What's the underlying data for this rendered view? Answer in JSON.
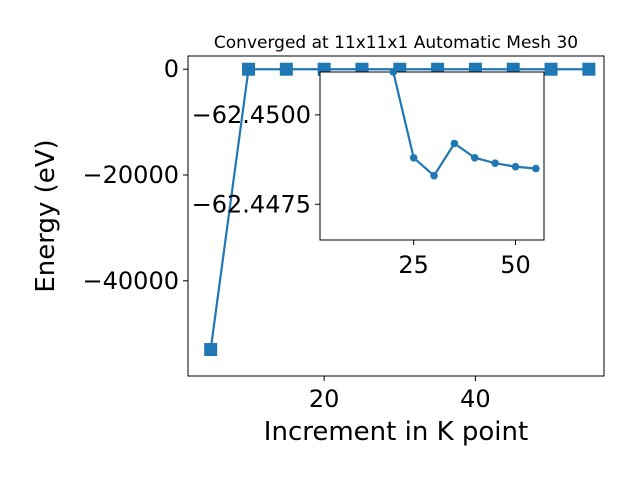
{
  "chart_data": [
    {
      "type": "line",
      "title": "Converged at 11x11x1 Automatic Mesh 30",
      "xlabel": "Increment in K point",
      "ylabel": "Energy (eV)",
      "xlim": [
        2,
        57
      ],
      "ylim": [
        -58000,
        2500
      ],
      "x_ticks": [
        20,
        40
      ],
      "y_ticks": [
        0,
        -20000,
        -40000
      ],
      "x_tick_labels": [
        "20",
        "40"
      ],
      "y_tick_labels": [
        "0",
        "−20000",
        "−40000"
      ],
      "marker": "square",
      "color": "#1f77b4",
      "grid": false,
      "series": [
        {
          "x": [
            5,
            10,
            15,
            20,
            25,
            30,
            35,
            40,
            45,
            50,
            55
          ],
          "y": [
            -53000,
            0,
            0,
            0,
            0,
            0,
            0,
            0,
            0,
            0,
            0
          ]
        }
      ]
    },
    {
      "type": "line",
      "title": "",
      "xlabel": "",
      "ylabel": "",
      "xlim": [
        2,
        57
      ],
      "ylim": [
        -62.4465,
        -62.4512
      ],
      "x_ticks": [
        25,
        50
      ],
      "y_ticks": [
        -62.45,
        -62.4475
      ],
      "x_tick_labels": [
        "25",
        "50"
      ],
      "y_tick_labels": [
        "−62.4500",
        "−62.4475"
      ],
      "marker": "circle",
      "color": "#1f77b4",
      "grid": false,
      "series": [
        {
          "x": [
            20,
            25,
            30,
            35,
            40,
            45,
            50,
            55
          ],
          "y": [
            -62.4512,
            -62.4488,
            -62.4483,
            -62.4492,
            -62.4488,
            -62.44865,
            -62.44855,
            -62.4485
          ]
        }
      ]
    }
  ]
}
